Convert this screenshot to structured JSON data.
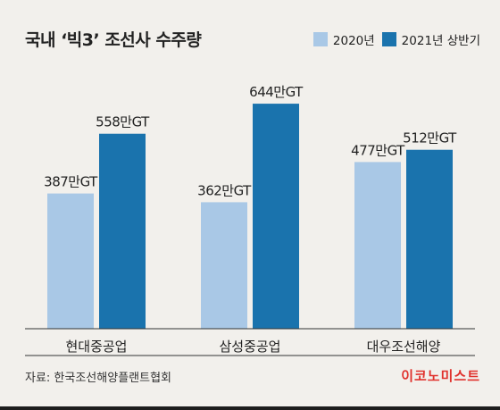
{
  "chart_data": {
    "type": "bar",
    "title": "국내 ‘빅3’ 조선사 수주량",
    "categories": [
      "현대중공업",
      "삼성중공업",
      "대우조선해양"
    ],
    "series": [
      {
        "name": "2020년",
        "values": [
          387,
          362,
          477
        ],
        "labels": [
          "387만GT",
          "362만GT",
          "477만GT"
        ],
        "color": "#a9c8e6"
      },
      {
        "name": "2021년 상반기",
        "values": [
          558,
          644,
          512
        ],
        "labels": [
          "558만GT",
          "644만GT",
          "512만GT"
        ],
        "color": "#1a73ad"
      }
    ],
    "unit": "만GT",
    "ylim": [
      0,
      680
    ],
    "legend_position": "top-right",
    "grid": false
  },
  "source": "자료: 한국조선해양플랜트협회",
  "brand": "이코노미스트",
  "colors": {
    "background": "#f2f0ec",
    "brand": "#e0322d",
    "axis": "#333333"
  }
}
